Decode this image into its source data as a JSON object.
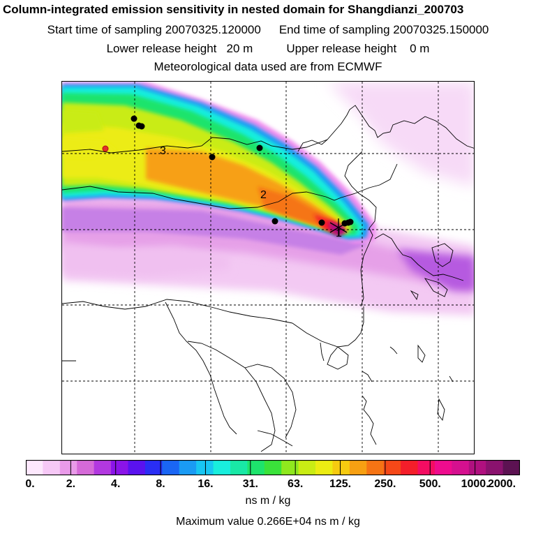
{
  "header": {
    "title": "Column-integrated emission sensitivity in nested domain for Shangdianzi_200703",
    "start_label": "Start time of sampling 20070325.120000",
    "end_label": "End time of sampling 20070325.150000",
    "lower_label": "Lower release height   20 m",
    "upper_label": "Upper release height    0 m",
    "met_label": "Meteorological data used are from ECMWF"
  },
  "map": {
    "receptor_icon": "star-cross-icon",
    "markers": [
      {
        "label": "1",
        "color": "#000000"
      },
      {
        "label": "2",
        "color": "#000000"
      },
      {
        "label": "3",
        "color": "#000000"
      }
    ],
    "highlight_marker_color": "#e0302a"
  },
  "colorbar": {
    "tick_labels": [
      "0.",
      "2.",
      "4.",
      "8.",
      "16.",
      "31.",
      "63.",
      "125.",
      "250.",
      "500.",
      "1000.",
      "2000."
    ],
    "colors": [
      "#fde8fd",
      "#f6c8f6",
      "#e99ae9",
      "#d56ad8",
      "#b238e0",
      "#8a14e8",
      "#5a12ef",
      "#2a2ef4",
      "#1a66f4",
      "#1a9bf4",
      "#18c6f2",
      "#19eedd",
      "#19e8a6",
      "#1de46c",
      "#3ae23a",
      "#8fe81e",
      "#c9ec14",
      "#ecec12",
      "#f6cb10",
      "#f7a012",
      "#f57414",
      "#f54818",
      "#f41e2a",
      "#f40c62",
      "#ee0c8e",
      "#d5108f",
      "#b0107f",
      "#8a126e",
      "#5c1252"
    ],
    "units": "ns m / kg"
  },
  "footer": {
    "max_value": "Maximum value  0.266E+04 ns m / kg"
  }
}
